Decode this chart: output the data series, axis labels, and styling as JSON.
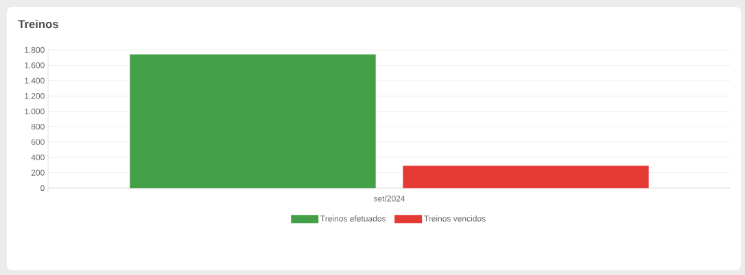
{
  "chart_data": {
    "type": "bar",
    "title": "Treinos",
    "categories": [
      "set/2024"
    ],
    "series": [
      {
        "name": "Treinos efetuados",
        "color": "#43a047",
        "values": [
          1740
        ]
      },
      {
        "name": "Treinos vencidos",
        "color": "#e53935",
        "values": [
          290
        ]
      }
    ],
    "ylim": [
      0,
      1800
    ],
    "yticks": [
      0,
      200,
      400,
      600,
      800,
      {
        "value": 1000,
        "label": "1.000"
      },
      {
        "value": 1200,
        "label": "1.200"
      },
      {
        "value": 1400,
        "label": "1.400"
      },
      {
        "value": 1600,
        "label": "1.600"
      },
      {
        "value": 1800,
        "label": "1.800"
      }
    ],
    "grid": "y",
    "legend": "bottom"
  }
}
